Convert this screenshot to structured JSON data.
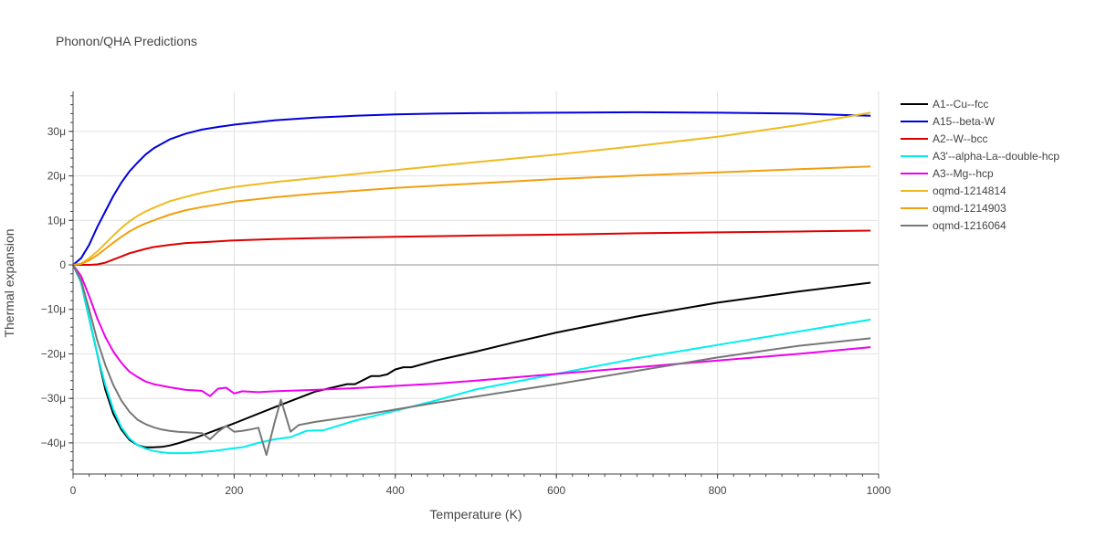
{
  "chart_data": {
    "type": "line",
    "title": "Phonon/QHA Predictions",
    "xlabel": "Temperature (K)",
    "ylabel": "Thermal expansion",
    "xlim": [
      0,
      1000
    ],
    "ylim": [
      -47,
      39
    ],
    "x_ticks": [
      0,
      200,
      400,
      600,
      800,
      1000
    ],
    "x_tick_labels": [
      "0",
      "200",
      "400",
      "600",
      "800",
      "1000"
    ],
    "y_ticks": [
      -40,
      -30,
      -20,
      -10,
      0,
      10,
      20,
      30
    ],
    "y_tick_labels": [
      "−40μ",
      "−30μ",
      "−20μ",
      "−10μ",
      "0",
      "10μ",
      "20μ",
      "30μ"
    ],
    "grid": true,
    "legend_position": "right",
    "series": [
      {
        "name": "A1--Cu--fcc",
        "color": "#000000",
        "x": [
          0,
          10,
          20,
          30,
          40,
          50,
          60,
          70,
          80,
          90,
          100,
          110,
          120,
          130,
          150,
          175,
          200,
          250,
          300,
          340,
          350,
          370,
          380,
          390,
          400,
          410,
          420,
          450,
          500,
          550,
          600,
          700,
          800,
          900,
          990
        ],
        "y": [
          0,
          -4,
          -12,
          -20,
          -28,
          -33.5,
          -37,
          -39.3,
          -40.5,
          -41,
          -41,
          -40.9,
          -40.6,
          -40.1,
          -39,
          -37.3,
          -35.6,
          -32,
          -28.5,
          -26.8,
          -26.8,
          -25,
          -25,
          -24.6,
          -23.5,
          -23,
          -23,
          -21.5,
          -19.5,
          -17.3,
          -15.2,
          -11.6,
          -8.5,
          -6,
          -4
        ]
      },
      {
        "name": "A15--beta-W",
        "color": "#0000dd",
        "x": [
          0,
          10,
          20,
          30,
          40,
          50,
          60,
          70,
          80,
          90,
          100,
          120,
          140,
          160,
          180,
          200,
          250,
          300,
          350,
          400,
          450,
          500,
          600,
          700,
          800,
          900,
          990
        ],
        "y": [
          0,
          1.5,
          4.5,
          8.5,
          12,
          15.5,
          18.5,
          21,
          23,
          24.8,
          26.2,
          28.2,
          29.5,
          30.4,
          31,
          31.5,
          32.5,
          33.1,
          33.5,
          33.8,
          34,
          34.1,
          34.2,
          34.3,
          34.2,
          34,
          33.5
        ]
      },
      {
        "name": "A2--W--bcc",
        "color": "#dd0000",
        "x": [
          0,
          10,
          20,
          30,
          40,
          50,
          60,
          70,
          80,
          90,
          100,
          120,
          140,
          160,
          180,
          200,
          250,
          300,
          400,
          500,
          600,
          700,
          800,
          900,
          990
        ],
        "y": [
          0,
          0,
          0,
          0.1,
          0.5,
          1.2,
          1.9,
          2.6,
          3.1,
          3.6,
          4,
          4.5,
          4.9,
          5.1,
          5.3,
          5.5,
          5.8,
          6,
          6.3,
          6.6,
          6.8,
          7.1,
          7.3,
          7.5,
          7.7
        ]
      },
      {
        "name": "A3'--alpha-La--double-hcp",
        "color": "#00eeee",
        "x": [
          0,
          10,
          20,
          30,
          40,
          50,
          60,
          70,
          80,
          90,
          100,
          110,
          120,
          130,
          140,
          150,
          175,
          200,
          210,
          230,
          250,
          270,
          290,
          300,
          310,
          350,
          400,
          450,
          500,
          600,
          700,
          800,
          900,
          990
        ],
        "y": [
          0,
          -4,
          -12,
          -20,
          -27,
          -32.5,
          -36.5,
          -39,
          -40.5,
          -41.3,
          -41.8,
          -42.1,
          -42.3,
          -42.3,
          -42.3,
          -42.2,
          -41.8,
          -41.2,
          -41,
          -40,
          -39.2,
          -38.7,
          -37.3,
          -37.2,
          -37.2,
          -35,
          -32.8,
          -30.5,
          -28,
          -24.5,
          -21,
          -18,
          -15,
          -12.3
        ]
      },
      {
        "name": "A3--Mg--hcp",
        "color": "#ee00ee",
        "x": [
          0,
          10,
          20,
          30,
          40,
          50,
          60,
          70,
          80,
          90,
          100,
          120,
          140,
          160,
          170,
          180,
          190,
          200,
          210,
          230,
          250,
          300,
          350,
          400,
          450,
          500,
          600,
          700,
          800,
          900,
          990
        ],
        "y": [
          0,
          -2.5,
          -7,
          -12,
          -16.2,
          -19.5,
          -22,
          -24,
          -25.2,
          -26.2,
          -26.8,
          -27.5,
          -28.1,
          -28.3,
          -29.5,
          -27.8,
          -27.6,
          -28.9,
          -28.4,
          -28.6,
          -28.4,
          -28.1,
          -27.7,
          -27.2,
          -26.7,
          -26,
          -24.5,
          -23,
          -21.5,
          -20,
          -18.5
        ]
      },
      {
        "name": "oqmd-1214814",
        "color": "#eebb22",
        "x": [
          0,
          10,
          20,
          30,
          40,
          50,
          60,
          70,
          80,
          90,
          100,
          120,
          140,
          160,
          180,
          200,
          250,
          300,
          400,
          500,
          600,
          700,
          800,
          900,
          990
        ],
        "y": [
          0,
          0.3,
          1.5,
          3,
          4.8,
          6.6,
          8.3,
          9.8,
          11,
          12,
          12.8,
          14.3,
          15.3,
          16.2,
          16.9,
          17.5,
          18.6,
          19.5,
          21.3,
          23.1,
          24.8,
          26.7,
          28.8,
          31.4,
          34.2
        ]
      },
      {
        "name": "oqmd-1214903",
        "color": "#f0a010",
        "x": [
          0,
          10,
          20,
          30,
          40,
          50,
          60,
          70,
          80,
          90,
          100,
          120,
          140,
          160,
          180,
          200,
          250,
          300,
          400,
          500,
          600,
          700,
          800,
          900,
          990
        ],
        "y": [
          0,
          0.2,
          1,
          2.2,
          3.6,
          5,
          6.3,
          7.5,
          8.5,
          9.3,
          10,
          11.3,
          12.3,
          13,
          13.6,
          14.2,
          15.2,
          16,
          17.3,
          18.3,
          19.3,
          20.1,
          20.8,
          21.5,
          22.1
        ]
      },
      {
        "name": "oqmd-1216064",
        "color": "#777777",
        "x": [
          0,
          10,
          20,
          30,
          40,
          50,
          60,
          70,
          80,
          90,
          100,
          110,
          120,
          130,
          140,
          160,
          170,
          180,
          190,
          200,
          210,
          220,
          230,
          240,
          250,
          258,
          270,
          280,
          300,
          350,
          400,
          450,
          500,
          600,
          700,
          800,
          900,
          990
        ],
        "y": [
          0,
          -3.5,
          -10,
          -17,
          -22.5,
          -27,
          -30.5,
          -33,
          -34.8,
          -35.8,
          -36.5,
          -37,
          -37.3,
          -37.5,
          -37.6,
          -37.8,
          -39.2,
          -37.5,
          -36.2,
          -37.5,
          -37.3,
          -37,
          -36.6,
          -42.7,
          -35.5,
          -30.3,
          -37.5,
          -36,
          -35.3,
          -34,
          -32.5,
          -31,
          -29.6,
          -26.8,
          -23.8,
          -20.8,
          -18.2,
          -16.5
        ]
      }
    ]
  }
}
